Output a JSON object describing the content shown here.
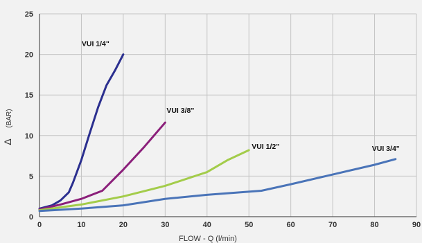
{
  "chart_data": {
    "type": "line",
    "title": "",
    "xlabel": "FLOW - Q (l/min)",
    "ylabel": "Δ (BAR)",
    "ylabel_symbol": "Δ",
    "ylabel_text": "(BAR)",
    "xlim": [
      0,
      90
    ],
    "ylim": [
      0,
      25
    ],
    "x_ticks": [
      0,
      10,
      20,
      30,
      40,
      50,
      60,
      70,
      80,
      90
    ],
    "y_ticks": [
      0,
      5,
      10,
      15,
      20,
      25
    ],
    "grid": true,
    "series": [
      {
        "name": "VUI 1/4\"",
        "color": "#2b2f8f",
        "points": [
          [
            0,
            1.0
          ],
          [
            3,
            1.4
          ],
          [
            5,
            2.0
          ],
          [
            7,
            3.0
          ],
          [
            8,
            4.2
          ],
          [
            10,
            7.0
          ],
          [
            12,
            10.3
          ],
          [
            14,
            13.5
          ],
          [
            16,
            16.2
          ],
          [
            18,
            18.0
          ],
          [
            20,
            20.0
          ]
        ]
      },
      {
        "name": "VUI 3/8\"",
        "color": "#8b1f7a",
        "points": [
          [
            0,
            0.9
          ],
          [
            5,
            1.5
          ],
          [
            10,
            2.2
          ],
          [
            15,
            3.2
          ],
          [
            20,
            5.8
          ],
          [
            25,
            8.6
          ],
          [
            30,
            11.6
          ]
        ]
      },
      {
        "name": "VUI 1/2\"",
        "color": "#a3cc4a",
        "points": [
          [
            0,
            0.8
          ],
          [
            10,
            1.5
          ],
          [
            20,
            2.5
          ],
          [
            30,
            3.8
          ],
          [
            40,
            5.5
          ],
          [
            45,
            7.0
          ],
          [
            50,
            8.2
          ]
        ]
      },
      {
        "name": "VUI 3/4\"",
        "color": "#4a74b8",
        "points": [
          [
            0,
            0.7
          ],
          [
            10,
            1.0
          ],
          [
            20,
            1.4
          ],
          [
            30,
            2.2
          ],
          [
            40,
            2.7
          ],
          [
            53,
            3.2
          ],
          [
            60,
            4.0
          ],
          [
            70,
            5.2
          ],
          [
            80,
            6.4
          ],
          [
            85,
            7.1
          ]
        ]
      }
    ]
  }
}
